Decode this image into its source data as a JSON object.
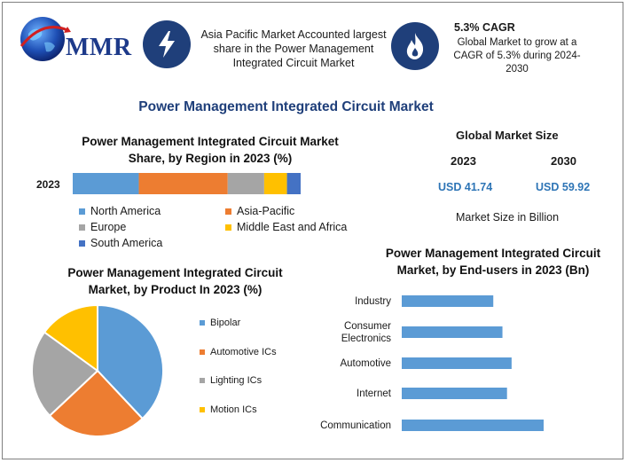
{
  "brand": {
    "logo_text": "MMR"
  },
  "header": {
    "info1": "Asia Pacific Market Accounted largest share in the Power Management Integrated Circuit Market",
    "cagr_title": "5.3% CAGR",
    "cagr_desc": "Global Market to grow at a CAGR of 5.3% during 2024-2030"
  },
  "main_title": "Power Management Integrated Circuit Market",
  "region_chart": {
    "title": "Power Management Integrated Circuit Market Share, by Region in 2023 (%)",
    "year": "2023"
  },
  "market_size": {
    "title": "Global Market Size",
    "year1": "2023",
    "year2": "2030",
    "value1": "USD 41.74",
    "value2": "USD 59.92",
    "unit_note": "Market Size in Billion"
  },
  "product_chart": {
    "title": "Power Management Integrated Circuit Market, by Product In 2023 (%)"
  },
  "enduser_chart": {
    "title": "Power Management Integrated Circuit Market, by End-users in 2023 (Bn)"
  },
  "colors": {
    "blue": "#5b9bd5",
    "orange": "#ed7d31",
    "gray": "#a5a5a5",
    "yellow": "#ffc000",
    "darkblue": "#4472c4",
    "icon_bg": "#1f3f7a",
    "title": "#1f3f7a",
    "accent_text": "#2e75b6"
  },
  "chart_data": [
    {
      "type": "bar",
      "orientation": "horizontal-stacked",
      "title": "Power Management Integrated Circuit Market Share, by Region in 2023 (%)",
      "categories": [
        "2023"
      ],
      "series": [
        {
          "name": "North America",
          "values": [
            29
          ],
          "color": "#5b9bd5"
        },
        {
          "name": "Asia-Pacific",
          "values": [
            39
          ],
          "color": "#ed7d31"
        },
        {
          "name": "Europe",
          "values": [
            16
          ],
          "color": "#a5a5a5"
        },
        {
          "name": "Middle East and Africa",
          "values": [
            10
          ],
          "color": "#ffc000"
        },
        {
          "name": "South America",
          "values": [
            6
          ],
          "color": "#4472c4"
        }
      ],
      "legend": "bottom"
    },
    {
      "type": "pie",
      "title": "Power Management Integrated Circuit Market, by Product In 2023 (%)",
      "categories": [
        "Bipolar",
        "Automotive ICs",
        "Lighting ICs",
        "Motion ICs"
      ],
      "values": [
        38,
        25,
        22,
        15
      ],
      "colors": [
        "#5b9bd5",
        "#ed7d31",
        "#a5a5a5",
        "#ffc000"
      ],
      "legend": "right"
    },
    {
      "type": "bar",
      "orientation": "horizontal",
      "title": "Power Management Integrated Circuit Market, by End-users in 2023 (Bn)",
      "categories": [
        "Industry",
        "Consumer Electronics",
        "Automotive",
        "Internet",
        "Communication"
      ],
      "values": [
        10,
        11,
        12,
        11.5,
        15.5
      ],
      "color": "#5b9bd5",
      "xlim": [
        0,
        20
      ]
    }
  ]
}
